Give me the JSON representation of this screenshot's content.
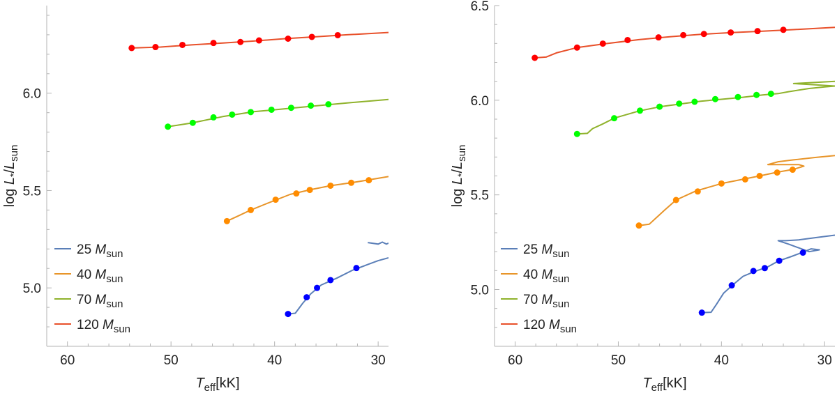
{
  "chart_data": [
    {
      "type": "line",
      "title": "",
      "xlabel": "T_eff[kK]",
      "ylabel": "log L*/L_sun",
      "xlim": [
        62,
        29
      ],
      "ylim": [
        4.7,
        6.45
      ],
      "x_ticks": [
        60,
        50,
        40,
        30
      ],
      "x_tick_labels": [
        "60",
        "50",
        "40",
        "30"
      ],
      "y_ticks": [
        5.0,
        5.5,
        6.0
      ],
      "y_tick_labels": [
        "5.0",
        "5.5",
        "6.0"
      ],
      "legend": [
        "25 Msun",
        "40 Msun",
        "70 Msun",
        "120 Msun"
      ],
      "legend_position": "bottom-left",
      "series": [
        {
          "name": "25 Msun",
          "color": "#5b7fb8",
          "marker_color": "#0000ff",
          "line": [
            [
              38.7,
              4.866
            ],
            [
              38.0,
              4.87
            ],
            [
              37.3,
              4.92
            ],
            [
              36.5,
              4.97
            ],
            [
              35.5,
              5.015
            ],
            [
              34.0,
              5.05
            ],
            [
              32.5,
              5.09
            ],
            [
              31.0,
              5.12
            ],
            [
              30.0,
              5.14
            ],
            [
              29.0,
              5.155
            ]
          ],
          "extra_line": [
            [
              31.0,
              5.233
            ],
            [
              30.0,
              5.225
            ],
            [
              29.6,
              5.235
            ],
            [
              29.2,
              5.225
            ],
            [
              29.0,
              5.23
            ]
          ],
          "points": [
            [
              38.7,
              4.866
            ],
            [
              36.9,
              4.952
            ],
            [
              35.9,
              5.0
            ],
            [
              34.6,
              5.04
            ],
            [
              32.1,
              5.102
            ]
          ]
        },
        {
          "name": "40 Msun",
          "color": "#e8952a",
          "marker_color": "#ff8c00",
          "line": [
            [
              44.6,
              5.343
            ],
            [
              43.5,
              5.37
            ],
            [
              42.3,
              5.4
            ],
            [
              40.9,
              5.43
            ],
            [
              38.5,
              5.48
            ],
            [
              36.5,
              5.505
            ],
            [
              34.6,
              5.525
            ],
            [
              32.6,
              5.54
            ],
            [
              30.9,
              5.555
            ],
            [
              29.0,
              5.572
            ]
          ],
          "points": [
            [
              44.6,
              5.343
            ],
            [
              42.3,
              5.4
            ],
            [
              39.9,
              5.453
            ],
            [
              37.9,
              5.485
            ],
            [
              36.6,
              5.503
            ],
            [
              34.6,
              5.525
            ],
            [
              32.6,
              5.54
            ],
            [
              30.9,
              5.553
            ]
          ]
        },
        {
          "name": "70 Msun",
          "color": "#8fb22b",
          "marker_color": "#00ff00",
          "line": [
            [
              50.3,
              5.828
            ],
            [
              48.0,
              5.847
            ],
            [
              45.0,
              5.88
            ],
            [
              42.0,
              5.905
            ],
            [
              39.0,
              5.92
            ],
            [
              36.0,
              5.935
            ],
            [
              33.0,
              5.95
            ],
            [
              29.0,
              5.968
            ]
          ],
          "points": [
            [
              50.3,
              5.828
            ],
            [
              47.9,
              5.848
            ],
            [
              45.9,
              5.876
            ],
            [
              44.1,
              5.89
            ],
            [
              42.3,
              5.903
            ],
            [
              40.3,
              5.915
            ],
            [
              38.4,
              5.925
            ],
            [
              36.5,
              5.936
            ],
            [
              34.8,
              5.943
            ]
          ]
        },
        {
          "name": "120 Msun",
          "color": "#e8502a",
          "marker_color": "#ff0000",
          "line": [
            [
              53.8,
              6.232
            ],
            [
              51.0,
              6.237
            ],
            [
              48.0,
              6.248
            ],
            [
              45.0,
              6.258
            ],
            [
              42.0,
              6.268
            ],
            [
              39.0,
              6.28
            ],
            [
              36.0,
              6.29
            ],
            [
              33.0,
              6.3
            ],
            [
              29.0,
              6.312
            ]
          ],
          "points": [
            [
              53.8,
              6.232
            ],
            [
              51.5,
              6.237
            ],
            [
              48.9,
              6.248
            ],
            [
              45.9,
              6.258
            ],
            [
              43.3,
              6.263
            ],
            [
              41.5,
              6.271
            ],
            [
              38.7,
              6.28
            ],
            [
              36.4,
              6.289
            ],
            [
              33.9,
              6.298
            ]
          ]
        }
      ]
    },
    {
      "type": "line",
      "title": "",
      "xlabel": "T_eff[kK]",
      "ylabel": "log L*/L_sun",
      "xlim": [
        62,
        29
      ],
      "ylim": [
        4.7,
        6.5
      ],
      "x_ticks": [
        60,
        50,
        40,
        30
      ],
      "x_tick_labels": [
        "60",
        "50",
        "40",
        "30"
      ],
      "y_ticks": [
        5.0,
        5.5,
        6.0,
        6.5
      ],
      "y_tick_labels": [
        "5.0",
        "5.5",
        "6.0",
        "6.5"
      ],
      "legend": [
        "25 Msun",
        "40 Msun",
        "70 Msun",
        "120 Msun"
      ],
      "legend_position": "bottom-left",
      "series": [
        {
          "name": "25 Msun",
          "color": "#5b7fb8",
          "marker_color": "#0000ff",
          "line": [
            [
              41.9,
              4.878
            ],
            [
              41.0,
              4.88
            ],
            [
              40.5,
              4.92
            ],
            [
              39.8,
              4.98
            ],
            [
              39.0,
              5.02
            ],
            [
              37.9,
              5.07
            ],
            [
              36.8,
              5.095
            ],
            [
              35.5,
              5.12
            ],
            [
              34.5,
              5.15
            ],
            [
              33.2,
              5.175
            ],
            [
              32.2,
              5.195
            ],
            [
              31.3,
              5.215
            ],
            [
              30.5,
              5.21
            ],
            [
              31.5,
              5.2
            ],
            [
              32.5,
              5.22
            ],
            [
              33.5,
              5.24
            ],
            [
              34.5,
              5.258
            ],
            [
              33.8,
              5.258
            ],
            [
              32.5,
              5.262
            ],
            [
              31.5,
              5.27
            ],
            [
              30.0,
              5.28
            ],
            [
              29.0,
              5.287
            ]
          ],
          "points": [
            [
              41.9,
              4.878
            ],
            [
              39.0,
              5.022
            ],
            [
              36.9,
              5.098
            ],
            [
              35.8,
              5.113
            ],
            [
              34.4,
              5.152
            ],
            [
              32.1,
              5.195
            ]
          ]
        },
        {
          "name": "40 Msun",
          "color": "#e8952a",
          "marker_color": "#ff8c00",
          "line": [
            [
              48.0,
              5.338
            ],
            [
              47.0,
              5.345
            ],
            [
              46.5,
              5.37
            ],
            [
              45.5,
              5.42
            ],
            [
              44.4,
              5.473
            ],
            [
              42.5,
              5.52
            ],
            [
              40.0,
              5.56
            ],
            [
              37.7,
              5.585
            ],
            [
              36.3,
              5.6
            ],
            [
              34.6,
              5.62
            ],
            [
              33.0,
              5.635
            ],
            [
              32.0,
              5.652
            ],
            [
              32.5,
              5.66
            ],
            [
              34.0,
              5.66
            ],
            [
              35.5,
              5.66
            ],
            [
              34.5,
              5.675
            ],
            [
              33.0,
              5.685
            ],
            [
              31.0,
              5.697
            ],
            [
              29.0,
              5.708
            ]
          ],
          "points": [
            [
              48.0,
              5.338
            ],
            [
              44.4,
              5.473
            ],
            [
              42.3,
              5.518
            ],
            [
              40.0,
              5.56
            ],
            [
              37.7,
              5.582
            ],
            [
              36.3,
              5.6
            ],
            [
              34.6,
              5.618
            ],
            [
              33.1,
              5.633
            ]
          ]
        },
        {
          "name": "70 Msun",
          "color": "#8fb22b",
          "marker_color": "#00ff00",
          "line": [
            [
              54.0,
              5.822
            ],
            [
              53.0,
              5.825
            ],
            [
              52.5,
              5.85
            ],
            [
              51.5,
              5.875
            ],
            [
              50.4,
              5.905
            ],
            [
              48.0,
              5.943
            ],
            [
              46.0,
              5.965
            ],
            [
              44.0,
              5.98
            ],
            [
              42.0,
              5.995
            ],
            [
              40.0,
              6.005
            ],
            [
              38.0,
              6.015
            ],
            [
              36.0,
              6.028
            ],
            [
              34.5,
              6.035
            ],
            [
              33.5,
              6.045
            ],
            [
              31.5,
              6.062
            ],
            [
              30.0,
              6.07
            ],
            [
              29.0,
              6.075
            ],
            [
              31.0,
              6.082
            ],
            [
              33.0,
              6.088
            ],
            [
              31.5,
              6.092
            ],
            [
              29.0,
              6.1
            ]
          ],
          "points": [
            [
              54.0,
              5.822
            ],
            [
              50.4,
              5.905
            ],
            [
              47.9,
              5.945
            ],
            [
              46.0,
              5.966
            ],
            [
              44.1,
              5.982
            ],
            [
              42.6,
              5.992
            ],
            [
              40.6,
              6.006
            ],
            [
              38.4,
              6.017
            ],
            [
              36.6,
              6.028
            ],
            [
              35.2,
              6.034
            ]
          ]
        },
        {
          "name": "120 Msun",
          "color": "#e8502a",
          "marker_color": "#ff0000",
          "line": [
            [
              58.1,
              6.224
            ],
            [
              57.0,
              6.228
            ],
            [
              56.0,
              6.25
            ],
            [
              54.0,
              6.278
            ],
            [
              51.0,
              6.3
            ],
            [
              48.0,
              6.32
            ],
            [
              45.0,
              6.335
            ],
            [
              42.0,
              6.348
            ],
            [
              39.0,
              6.357
            ],
            [
              36.0,
              6.365
            ],
            [
              33.0,
              6.373
            ],
            [
              29.0,
              6.385
            ]
          ],
          "points": [
            [
              58.1,
              6.224
            ],
            [
              54.0,
              6.278
            ],
            [
              51.5,
              6.299
            ],
            [
              49.1,
              6.318
            ],
            [
              46.1,
              6.332
            ],
            [
              43.7,
              6.344
            ],
            [
              41.7,
              6.35
            ],
            [
              39.1,
              6.358
            ],
            [
              36.5,
              6.365
            ],
            [
              34.0,
              6.372
            ]
          ]
        }
      ]
    }
  ]
}
